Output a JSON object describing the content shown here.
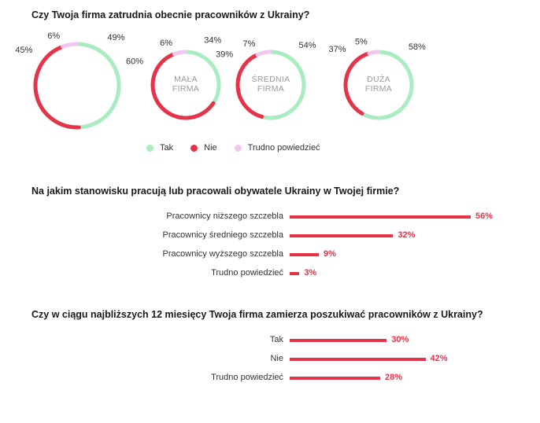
{
  "chart_data": [
    {
      "type": "pie",
      "title": "Czy Twoja firma zatrudnia obecnie pracowników z Ukrainy?",
      "legend": [
        {
          "label": "Tak",
          "color": "#a8ecc0"
        },
        {
          "label": "Nie",
          "color": "#e5334a"
        },
        {
          "label": "Trudno powiedzieć",
          "color": "#f0c8ef"
        }
      ],
      "donuts": [
        {
          "center_label": [],
          "tak": 49,
          "nie": 45,
          "trudno": 6,
          "labels": {
            "tak": "49%",
            "nie": "45%",
            "trudno": "6%"
          }
        },
        {
          "center_label": [
            "MAŁA",
            "FIRMA"
          ],
          "tak": 34,
          "nie": 60,
          "trudno": 6,
          "labels": {
            "tak": "34%",
            "nie": "60%",
            "trudno": "6%"
          }
        },
        {
          "center_label": [
            "ŚREDNIA",
            "FIRMA"
          ],
          "tak": 54,
          "nie": 39,
          "trudno": 7,
          "labels": {
            "tak": "54%",
            "nie": "39%",
            "trudno": "7%"
          }
        },
        {
          "center_label": [
            "DUŻA",
            "FIRMA"
          ],
          "tak": 58,
          "nie": 37,
          "trudno": 5,
          "labels": {
            "tak": "58%",
            "nie": "37%",
            "trudno": "5%"
          }
        }
      ]
    },
    {
      "type": "bar",
      "title": "Na jakim stanowisku pracują lub pracowali obywatele Ukrainy w Twojej firmie?",
      "categories": [
        "Pracownicy niższego szczebla",
        "Pracownicy średniego szczebla",
        "Pracownicy wyższego szczebla",
        "Trudno powiedzieć"
      ],
      "values": [
        56,
        32,
        9,
        3
      ],
      "value_labels": [
        "56%",
        "32%",
        "9%",
        "3%"
      ],
      "color": "#e5334a"
    },
    {
      "type": "bar",
      "title": "Czy w ciągu najbliższych 12 miesięcy Twoja firma zamierza poszukiwać pracowników z Ukrainy?",
      "categories": [
        "Tak",
        "Nie",
        "Trudno powiedzieć"
      ],
      "values": [
        30,
        42,
        28
      ],
      "value_labels": [
        "30%",
        "42%",
        "28%"
      ],
      "color": "#e5334a"
    }
  ]
}
